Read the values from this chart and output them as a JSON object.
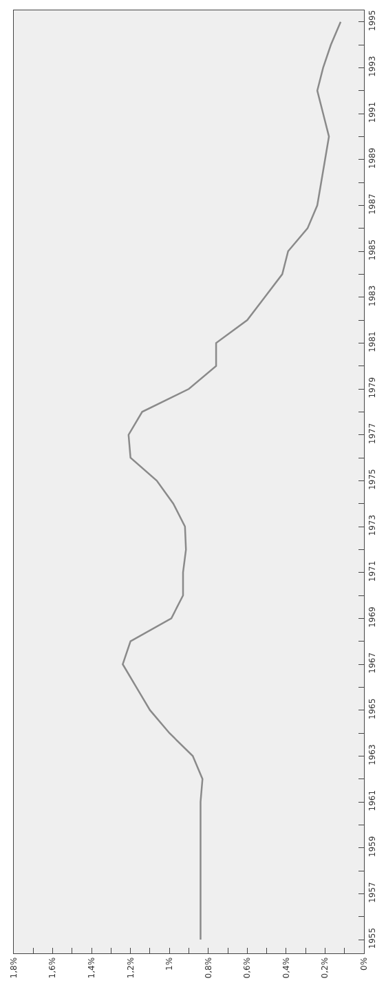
{
  "chart_data": {
    "type": "line",
    "orientation": "horizontal",
    "x": [
      1955,
      1956,
      1957,
      1958,
      1959,
      1960,
      1961,
      1962,
      1963,
      1964,
      1965,
      1966,
      1967,
      1968,
      1969,
      1970,
      1971,
      1972,
      1973,
      1974,
      1975,
      1976,
      1977,
      1978,
      1979,
      1980,
      1981,
      1982,
      1983,
      1984,
      1985,
      1986,
      1987,
      1988,
      1989,
      1990,
      1991,
      1992,
      1993,
      1994,
      1995
    ],
    "series": [
      {
        "color": "#8a8a8a",
        "values": [
          0.84,
          0.84,
          0.84,
          0.84,
          0.84,
          0.84,
          0.84,
          0.83,
          0.88,
          1.0,
          1.1,
          1.17,
          1.24,
          1.2,
          0.99,
          0.93,
          0.93,
          0.915,
          0.92,
          0.98,
          1.065,
          1.2,
          1.21,
          1.14,
          0.9,
          0.76,
          0.76,
          0.6,
          0.51,
          0.42,
          0.39,
          0.29,
          0.24,
          0.22,
          0.2,
          0.18,
          0.21,
          0.24,
          0.21,
          0.17,
          0.12
        ]
      }
    ],
    "ylim": [
      1954.4,
      1995.5
    ],
    "xlim": [
      1.8,
      0
    ],
    "yticks": [
      1955,
      {
        "value": 1956,
        "label": null
      },
      1957,
      {
        "value": 1958,
        "label": null
      },
      1959,
      {
        "value": 1960,
        "label": null
      },
      1961,
      {
        "value": 1962,
        "label": null
      },
      1963,
      {
        "value": 1964,
        "label": null
      },
      1965,
      {
        "value": 1966,
        "label": null
      },
      1967,
      {
        "value": 1968,
        "label": null
      },
      1969,
      {
        "value": 1970,
        "label": null
      },
      1971,
      {
        "value": 1972,
        "label": null
      },
      1973,
      {
        "value": 1974,
        "label": null
      },
      1975,
      {
        "value": 1976,
        "label": null
      },
      1977,
      {
        "value": 1978,
        "label": null
      },
      1979,
      {
        "value": 1980,
        "label": null
      },
      1981,
      {
        "value": 1982,
        "label": null
      },
      1983,
      {
        "value": 1984,
        "label": null
      },
      1985,
      {
        "value": 1986,
        "label": null
      },
      1987,
      {
        "value": 1988,
        "label": null
      },
      1989,
      {
        "value": 1990,
        "label": null
      },
      1991,
      {
        "value": 1992,
        "label": null
      },
      1993,
      {
        "value": 1994,
        "label": null
      },
      1995
    ],
    "xticks": [
      {
        "value": 0,
        "label": "0%"
      },
      {
        "value": 0.1,
        "label": null
      },
      {
        "value": 0.2,
        "label": "0,2%"
      },
      {
        "value": 0.3,
        "label": null
      },
      {
        "value": 0.4,
        "label": "0,4%"
      },
      {
        "value": 0.5,
        "label": null
      },
      {
        "value": 0.6,
        "label": "0,6%"
      },
      {
        "value": 0.7,
        "label": null
      },
      {
        "value": 0.8,
        "label": "0,8%"
      },
      {
        "value": 0.9,
        "label": null
      },
      {
        "value": 1.0,
        "label": "1%"
      },
      {
        "value": 1.1,
        "label": null
      },
      {
        "value": 1.2,
        "label": "1,2%"
      },
      {
        "value": 1.3,
        "label": null
      },
      {
        "value": 1.4,
        "label": "1,4%"
      },
      {
        "value": 1.5,
        "label": null
      },
      {
        "value": 1.6,
        "label": "1,6%"
      },
      {
        "value": 1.7,
        "label": null
      },
      {
        "value": 1.8,
        "label": "1,8%"
      }
    ]
  }
}
